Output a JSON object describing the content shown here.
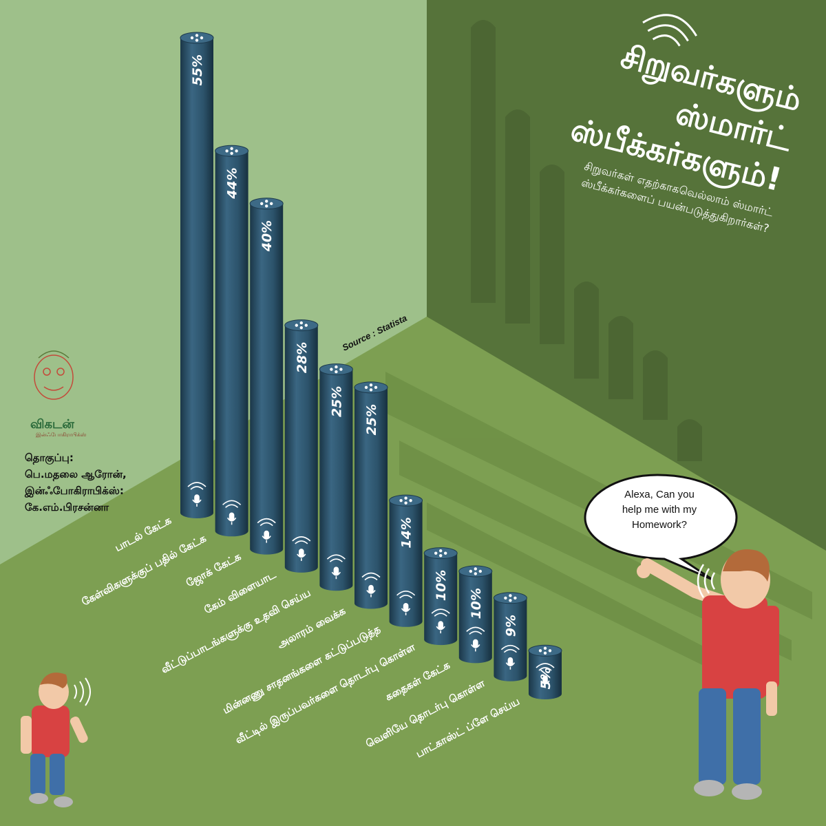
{
  "title": {
    "lines": [
      "சிறுவர்களும்",
      "ஸ்மார்ட்",
      "ஸ்பீக்கர்களும்!"
    ],
    "subtitle_lines": [
      "சிறுவர்கள் எதற்காகவெல்லாம் ஸ்மார்ட்",
      "ஸ்பீக்கர்களைப் பயன்படுத்துகிறார்கள்?"
    ]
  },
  "source": "Source : Statista",
  "logo": {
    "name": "விகடன்",
    "sub": "இன்ஃபோகிராபிக்ஸ்"
  },
  "credits": [
    "தொகுப்பு:",
    "பெ.மதலை ஆரோன்,",
    "இன்ஃபோகிராபிக்ஸ்:",
    "கே.எம்.பிரசன்னா"
  ],
  "speech_bubble": [
    "Alexa, Can you",
    "help me with my",
    "Homework?"
  ],
  "colors": {
    "wall_left": "#9ec08a",
    "wall_right": "#56733a",
    "floor": "#7d9f52",
    "cylinder": "#2f5670",
    "cylinder_dark": "#1d3a4d",
    "cylinder_top": "#3d6a86"
  },
  "icons": {
    "bar_icon": "microphone-icon",
    "top_icon": "speaker-top-icon",
    "wave_icon": "sound-wave-icon"
  },
  "chart_data": {
    "type": "bar",
    "categories": [
      "பாடல் கேட்க",
      "கேள்விகளுக்குப் பதில் கேட்க",
      "ஜோக் கேட்க",
      "கேம் விளையாட",
      "வீட்டுப்பாடங்களுக்கு உதவி செய்ய",
      "அலாரம் வைக்க",
      "மின்னணு சாதனங்களை கட்டுப்படுத்த",
      "வீட்டில் இருப்பவர்களை தொடர்பு கொள்ள",
      "கதைகள் கேட்க",
      "வெளியே தொடர்பு கொள்ள",
      "பாட்காஸ்ட் ப்ளே செய்ய"
    ],
    "values": [
      55,
      44,
      40,
      28,
      25,
      25,
      14,
      10,
      10,
      9,
      5
    ],
    "value_labels": [
      "55%",
      "44%",
      "40%",
      "28%",
      "25%",
      "25%",
      "14%",
      "10%",
      "10%",
      "9%",
      "5%"
    ],
    "unit": "%",
    "title": "சிறுவர்களும் ஸ்மார்ட் ஸ்பீக்கர்களும்!",
    "ylim": [
      0,
      55
    ],
    "grid": false,
    "legend": "none"
  }
}
